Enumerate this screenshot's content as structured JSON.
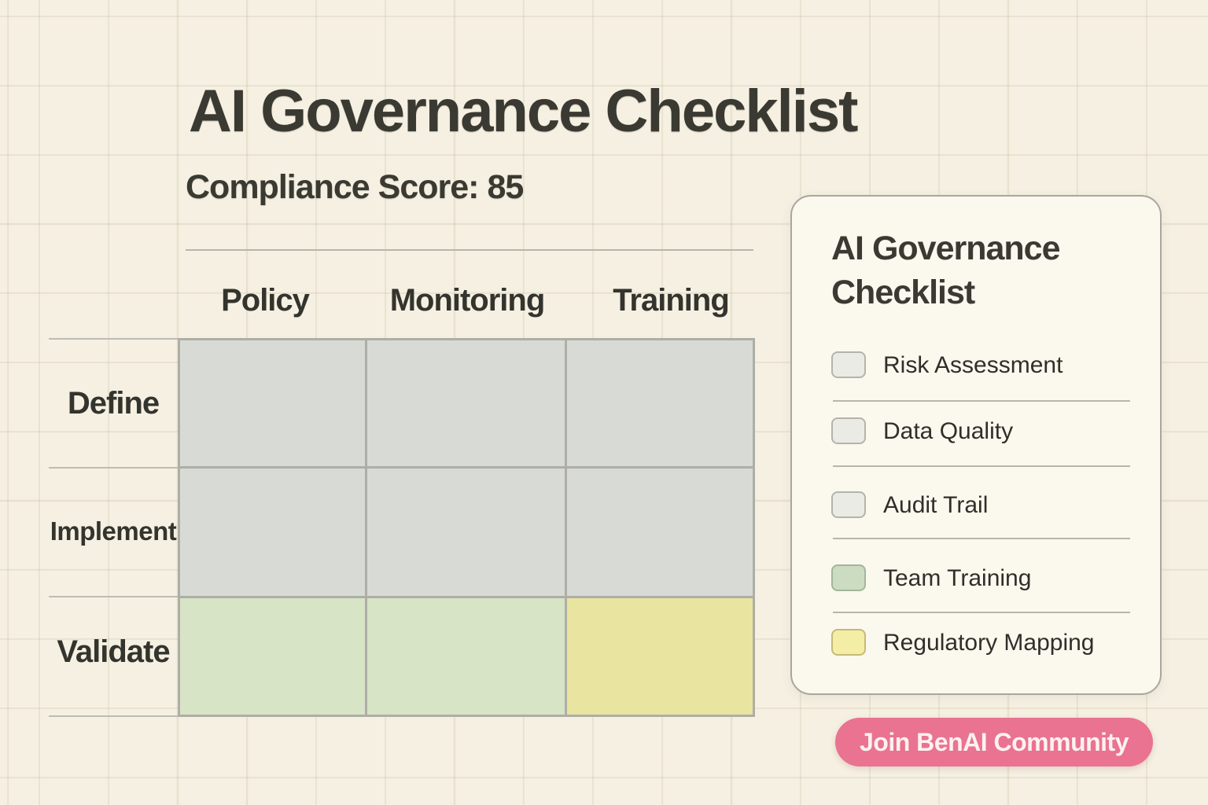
{
  "header": {
    "title": "AI Governance Checklist",
    "subtitle": "Compliance Score: 85",
    "compliance_score": 85
  },
  "matrix": {
    "columns": [
      "Policy",
      "Monitoring",
      "Training"
    ],
    "rows": [
      "Define",
      "Implement",
      "Validate"
    ],
    "cells": [
      [
        "gray",
        "gray",
        "gray"
      ],
      [
        "gray",
        "gray",
        "gray"
      ],
      [
        "green",
        "green",
        "yellow"
      ]
    ]
  },
  "panel": {
    "title": "AI Governance Checklist",
    "items": [
      {
        "label": "Risk Assessment",
        "swatch": "gray"
      },
      {
        "label": "Data Quality",
        "swatch": "gray"
      },
      {
        "label": "Audit Trail",
        "swatch": "gray"
      },
      {
        "label": "Team Training",
        "swatch": "green"
      },
      {
        "label": "Regulatory Mapping",
        "swatch": "yellow"
      }
    ]
  },
  "cta": {
    "label": "Join BenAI Community"
  },
  "colors": {
    "background": "#f5f0e2",
    "ink": "#3a3a33",
    "cell_gray": "#d8dad5",
    "cell_green": "#d7e4c5",
    "cell_yellow": "#e9e4a0",
    "panel_background": "#fbf8ee",
    "checkbox_gray": "#ebebe5",
    "checkbox_green": "#cbdcc1",
    "checkbox_yellow": "#f4eda5",
    "button_pink": "#e97390",
    "button_text": "#fdf2ee"
  }
}
